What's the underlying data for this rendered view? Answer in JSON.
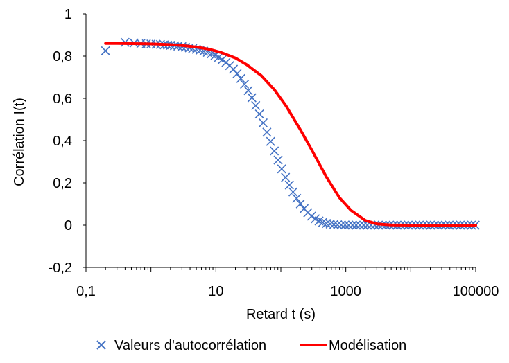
{
  "chart_data": {
    "type": "scatter",
    "title": "",
    "xlabel": "Retard t (s)",
    "ylabel": "Corrélation I(t)",
    "x_scale": "log",
    "xlim": [
      0.1,
      100000
    ],
    "ylim": [
      -0.2,
      1
    ],
    "x_ticks": [
      0.1,
      10,
      1000,
      100000
    ],
    "x_tick_labels": [
      "0,1",
      "10",
      "1000",
      "100000"
    ],
    "y_ticks": [
      -0.2,
      0,
      0.2,
      0.4,
      0.6,
      0.8,
      1
    ],
    "y_tick_labels": [
      "-0,2",
      "0",
      "0,2",
      "0,4",
      "0,6",
      "0,8",
      "1"
    ],
    "grid": false,
    "legend_position": "bottom",
    "series": [
      {
        "name": "Valeurs d'autocorrélation",
        "kind": "scatter",
        "marker": "x",
        "color": "#4472C4",
        "x": [
          0.2,
          0.4,
          0.55,
          0.7,
          0.85,
          1.0,
          1.2,
          1.4,
          1.6,
          1.8,
          2,
          2.3,
          2.6,
          3,
          3.4,
          3.9,
          4.4,
          5,
          5.7,
          6.5,
          7.4,
          8.5,
          9.7,
          11,
          12.5,
          14.3,
          16.3,
          18.6,
          21.2,
          24.2,
          27.6,
          31.5,
          35.9,
          41,
          46.8,
          53.4,
          61,
          69.6,
          79.4,
          90.6,
          103,
          118,
          135,
          154,
          175,
          200,
          228,
          260,
          297,
          339,
          387,
          441,
          503,
          574,
          655,
          748,
          853,
          973,
          1110,
          1267,
          1445,
          1649,
          1881,
          2146,
          2449,
          2794,
          3188,
          3637,
          4150,
          4735,
          5402,
          6164,
          7033,
          8024,
          9155,
          10446,
          11918,
          13598,
          15515,
          17702,
          20198,
          23045,
          26294,
          30001,
          34230,
          39056,
          44562,
          50844,
          58012,
          66190,
          75521,
          86168,
          98315
        ],
        "y": [
          0.825,
          0.865,
          0.862,
          0.86,
          0.858,
          0.857,
          0.856,
          0.855,
          0.853,
          0.852,
          0.851,
          0.849,
          0.847,
          0.845,
          0.842,
          0.839,
          0.836,
          0.832,
          0.828,
          0.823,
          0.818,
          0.811,
          0.803,
          0.794,
          0.783,
          0.77,
          0.755,
          0.738,
          0.717,
          0.694,
          0.667,
          0.637,
          0.603,
          0.566,
          0.526,
          0.484,
          0.44,
          0.396,
          0.351,
          0.308,
          0.266,
          0.226,
          0.19,
          0.157,
          0.127,
          0.101,
          0.078,
          0.059,
          0.043,
          0.03,
          0.02,
          0.013,
          0.008,
          0.005,
          0.003,
          0.002,
          0.001,
          0.001,
          0.0,
          0.0,
          0.0,
          0.0,
          0.0,
          0.0,
          0.0,
          0.0,
          0.0,
          0.0,
          0.0,
          0.0,
          0.0,
          0.0,
          0.0,
          0.0,
          0.0,
          0.0,
          0.0,
          0.0,
          0.0,
          0.0,
          0.0,
          0.0,
          0.0,
          0.0,
          0.0,
          0.0,
          0.0,
          0.0,
          0.0,
          0.0,
          0.0,
          0.0,
          0.0
        ]
      },
      {
        "name": "Modélisation",
        "kind": "line",
        "color": "#FF0000",
        "x": [
          0.2,
          0.3,
          0.5,
          0.8,
          1.2,
          2,
          3,
          5,
          8,
          12,
          20,
          30,
          50,
          80,
          120,
          200,
          300,
          500,
          800,
          1200,
          2000,
          3000,
          5000,
          10000,
          30000,
          100000
        ],
        "y": [
          0.86,
          0.86,
          0.859,
          0.858,
          0.857,
          0.854,
          0.85,
          0.843,
          0.832,
          0.817,
          0.791,
          0.759,
          0.708,
          0.64,
          0.565,
          0.451,
          0.355,
          0.229,
          0.13,
          0.07,
          0.022,
          0.006,
          0.001,
          0.0,
          0.0,
          0.0
        ]
      }
    ]
  }
}
